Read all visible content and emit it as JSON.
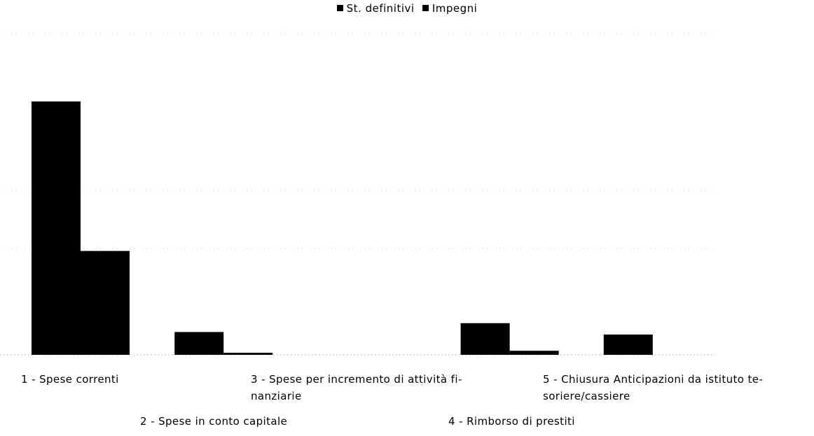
{
  "chart_data": {
    "type": "bar",
    "legend_position": "top",
    "series": [
      {
        "name": "St. definitivi",
        "color": "#000000",
        "values": [
          100,
          9,
          0,
          12.5,
          8
        ]
      },
      {
        "name": "Impegni",
        "color": "#000000",
        "values": [
          41,
          0.8,
          0,
          1.6,
          0
        ]
      }
    ],
    "categories": [
      "1 - Spese correnti",
      "2 - Spese in conto capitale",
      "3 - Spese per incremento di attività fi-\nnanziarie",
      "4 - Rimborso di prestiti",
      "5 - Chiusura Anticipazioni da istituto te-\nsoriere/cassiere"
    ],
    "grid": true
  }
}
